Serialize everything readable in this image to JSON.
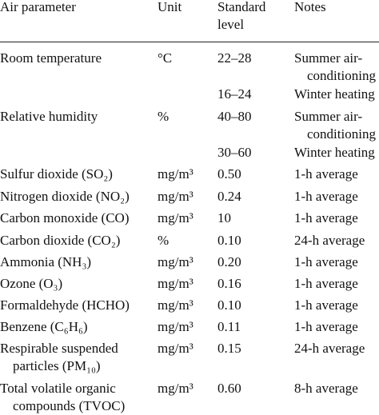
{
  "header": [
    "Air parameter",
    "Unit",
    [
      "Standard",
      "level"
    ],
    "Notes"
  ],
  "rows": [
    [
      [
        "Room temperature"
      ],
      "°C",
      "22–28",
      [
        "Summer air-",
        "conditioning"
      ]
    ],
    [
      null,
      null,
      "16–24",
      [
        "Winter heating"
      ]
    ],
    [
      [
        "Relative humidity"
      ],
      "%",
      "40–80",
      [
        "Summer air-",
        "conditioning"
      ]
    ],
    [
      null,
      null,
      "30–60",
      [
        "Winter heating"
      ]
    ],
    [
      [
        "Sulfur dioxide (SO₂)"
      ],
      "mg/m³",
      "0.50",
      [
        "1-h average"
      ]
    ],
    [
      [
        "Nitrogen dioxide (NO₂)"
      ],
      "mg/m³",
      "0.24",
      [
        "1-h average"
      ]
    ],
    [
      [
        "Carbon monoxide (CO)"
      ],
      "mg/m³",
      "10",
      [
        "1-h average"
      ]
    ],
    [
      [
        "Carbon dioxide (CO₂)"
      ],
      "%",
      "0.10",
      [
        "24-h average"
      ]
    ],
    [
      [
        "Ammonia (NH₃)"
      ],
      "mg/m³",
      "0.20",
      [
        "1-h average"
      ]
    ],
    [
      [
        "Ozone (O₃)"
      ],
      "mg/m³",
      "0.16",
      [
        "1-h average"
      ]
    ],
    [
      [
        "Formaldehyde (HCHO)"
      ],
      "mg/m³",
      "0.10",
      [
        "1-h average"
      ]
    ],
    [
      [
        "Benzene (C₆H₆)"
      ],
      "mg/m³",
      "0.11",
      [
        "1-h average"
      ]
    ],
    [
      [
        "Respirable suspended",
        "particles (PM₁₀)"
      ],
      "mg/m³",
      "0.15",
      [
        "24-h average"
      ]
    ],
    [
      [
        "Total volatile organic",
        "compounds (TVOC)"
      ],
      "mg/m³",
      "0.60",
      [
        "8-h average"
      ]
    ]
  ]
}
